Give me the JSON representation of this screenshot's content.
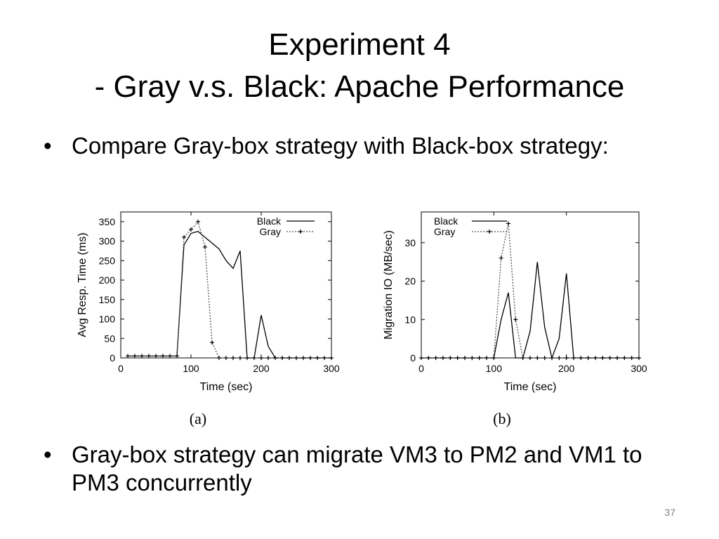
{
  "slide": {
    "title_line1": "Experiment 4",
    "title_line2": "- Gray v.s. Black: Apache Performance",
    "bullets": [
      "Compare Gray-box strategy with Black-box strategy:",
      "Gray-box strategy can migrate VM3 to PM2 and VM1 to PM3 concurrently"
    ],
    "bullet_symbol": "•",
    "page_number": "37"
  },
  "chart_data": [
    {
      "type": "line",
      "caption": "(a)",
      "xlabel": "Time (sec)",
      "ylabel": "Avg Resp. Time (ms)",
      "xlim": [
        0,
        300
      ],
      "ylim": [
        0,
        375
      ],
      "xticks": [
        0,
        100,
        200,
        300
      ],
      "yticks": [
        0,
        50,
        100,
        150,
        200,
        250,
        300,
        350
      ],
      "grid": false,
      "legend_position": "top-right",
      "series": [
        {
          "name": "Black",
          "style": "solid",
          "color": "#000000",
          "x": [
            10,
            20,
            30,
            40,
            50,
            60,
            70,
            80,
            90,
            100,
            110,
            120,
            130,
            140,
            150,
            160,
            170,
            180,
            190,
            200,
            210,
            220,
            230,
            240,
            250,
            260,
            270,
            280,
            290,
            300
          ],
          "y": [
            5,
            5,
            5,
            5,
            5,
            5,
            5,
            5,
            290,
            320,
            325,
            310,
            295,
            280,
            250,
            230,
            275,
            0,
            0,
            110,
            30,
            0,
            0,
            0,
            0,
            0,
            0,
            0,
            0,
            0
          ]
        },
        {
          "name": "Gray",
          "style": "dotted",
          "color": "#555555",
          "marker": "plus",
          "x": [
            10,
            20,
            30,
            40,
            50,
            60,
            70,
            80,
            90,
            100,
            110,
            120,
            130,
            140,
            150,
            160,
            170,
            180,
            190,
            200,
            210,
            220,
            230,
            240,
            250,
            260,
            270,
            280,
            290,
            300
          ],
          "y": [
            5,
            5,
            5,
            5,
            5,
            5,
            5,
            5,
            310,
            330,
            350,
            285,
            40,
            0,
            0,
            0,
            0,
            0,
            0,
            0,
            0,
            0,
            0,
            0,
            0,
            0,
            0,
            0,
            0,
            0
          ]
        }
      ]
    },
    {
      "type": "line",
      "caption": "(b)",
      "xlabel": "Time (sec)",
      "ylabel": "Migration IO (MB/sec)",
      "xlim": [
        0,
        300
      ],
      "ylim": [
        0,
        38
      ],
      "xticks": [
        0,
        100,
        200,
        300
      ],
      "yticks": [
        0,
        10,
        20,
        30
      ],
      "grid": false,
      "legend_position": "top-left",
      "series": [
        {
          "name": "Black",
          "style": "solid",
          "color": "#000000",
          "x": [
            0,
            10,
            20,
            30,
            40,
            50,
            60,
            70,
            80,
            90,
            100,
            110,
            120,
            130,
            140,
            150,
            160,
            170,
            180,
            190,
            200,
            210,
            220,
            230,
            240,
            250,
            260,
            270,
            280,
            290,
            300
          ],
          "y": [
            0,
            0,
            0,
            0,
            0,
            0,
            0,
            0,
            0,
            0,
            0,
            10,
            17,
            0,
            0,
            7,
            25,
            8,
            0,
            5,
            22,
            0,
            0,
            0,
            0,
            0,
            0,
            0,
            0,
            0,
            0
          ]
        },
        {
          "name": "Gray",
          "style": "dotted",
          "color": "#555555",
          "marker": "plus",
          "x": [
            0,
            10,
            20,
            30,
            40,
            50,
            60,
            70,
            80,
            90,
            100,
            110,
            120,
            130,
            140,
            150,
            160,
            170,
            180,
            190,
            200,
            210,
            220,
            230,
            240,
            250,
            260,
            270,
            280,
            290,
            300
          ],
          "y": [
            0,
            0,
            0,
            0,
            0,
            0,
            0,
            0,
            0,
            0,
            0,
            26,
            35,
            10,
            0,
            0,
            0,
            0,
            0,
            0,
            0,
            0,
            0,
            0,
            0,
            0,
            0,
            0,
            0,
            0,
            0
          ]
        }
      ]
    }
  ]
}
